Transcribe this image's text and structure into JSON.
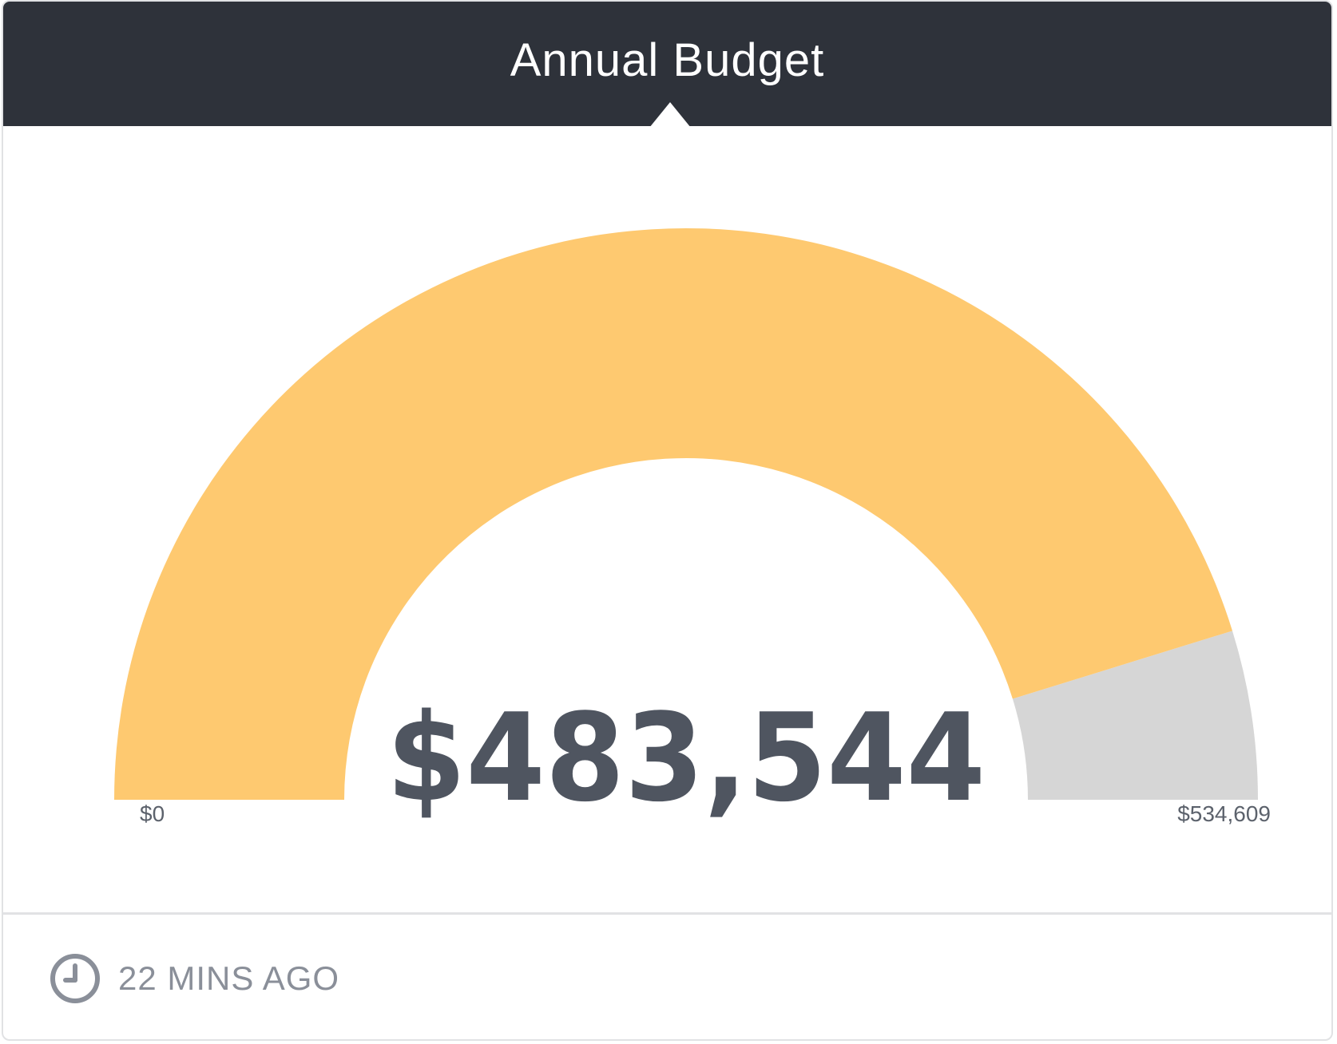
{
  "widget": {
    "title": "Annual Budget",
    "updated": "22 MINS AGO",
    "clock_icon": "clock-icon"
  },
  "chart_data": {
    "type": "gauge",
    "value": 483544,
    "value_label": "$483,544",
    "min": 0,
    "max": 534609,
    "min_label": "$0",
    "max_label": "$534,609",
    "colors": {
      "fill": "#fec970",
      "track": "#d6d6d6",
      "value_text": "#4f5560",
      "tick_text": "#5c626c"
    }
  }
}
